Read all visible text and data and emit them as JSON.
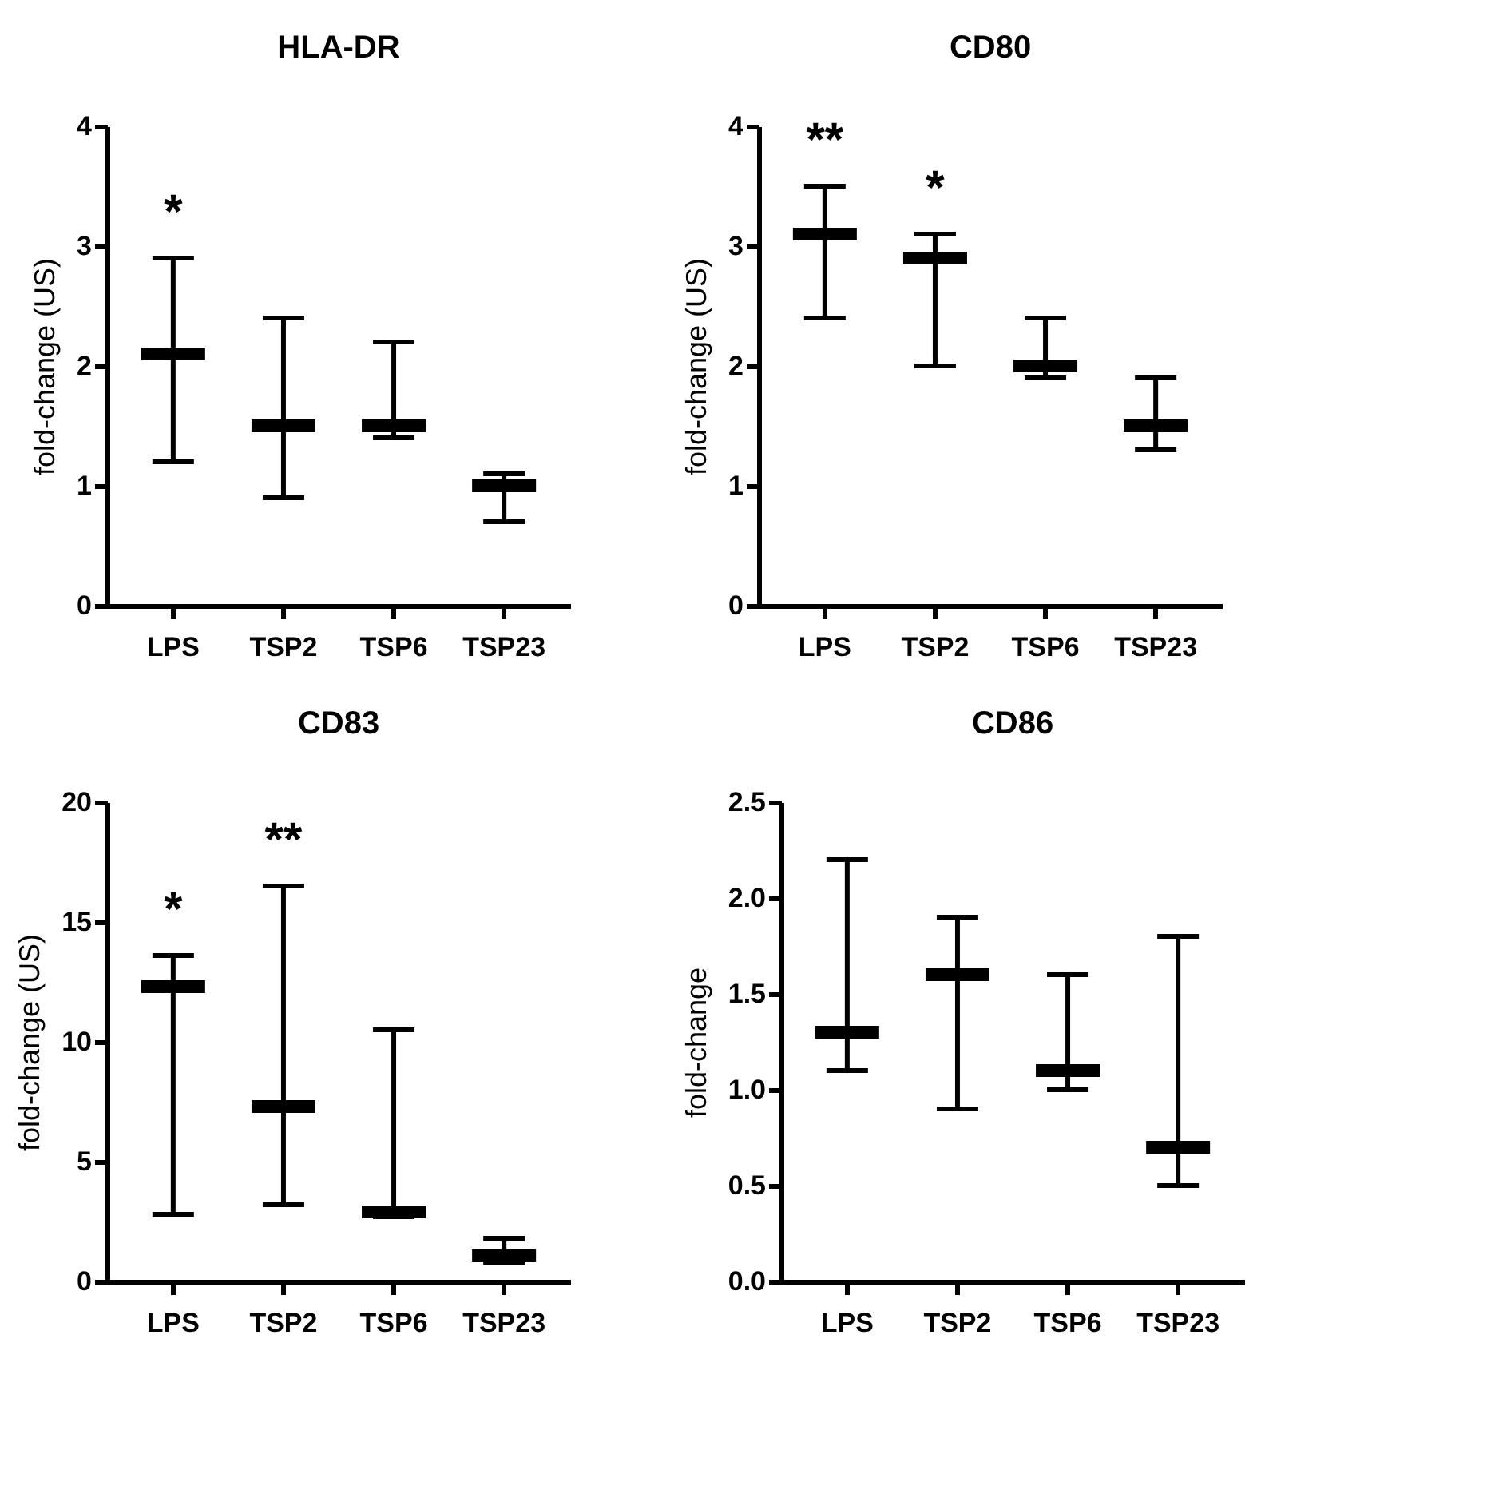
{
  "chart_data": [
    {
      "type": "box",
      "title": "HLA-DR",
      "ylabel": "fold-change (US)",
      "categories": [
        "LPS",
        "TSP2",
        "TSP6",
        "TSP23"
      ],
      "color": "#000000",
      "ylim": [
        0,
        4
      ],
      "yticks": [
        0,
        1,
        2,
        3,
        4
      ],
      "grid": false,
      "boxes": [
        {
          "low": 1.2,
          "q1": 2.1,
          "median": 2.1,
          "q3": 2.1,
          "high": 2.9
        },
        {
          "low": 0.9,
          "q1": 1.5,
          "median": 1.5,
          "q3": 1.5,
          "high": 2.4
        },
        {
          "low": 1.4,
          "q1": 1.5,
          "median": 1.5,
          "q3": 1.5,
          "high": 2.2
        },
        {
          "low": 0.7,
          "q1": 1.0,
          "median": 1.0,
          "q3": 1.0,
          "high": 1.1
        }
      ],
      "annotations": [
        "*"
      ]
    },
    {
      "type": "box",
      "title": "CD80",
      "ylabel": "fold-change (US)",
      "categories": [
        "LPS",
        "TSP2",
        "TSP6",
        "TSP23"
      ],
      "color": "#000000",
      "ylim": [
        0,
        4
      ],
      "yticks": [
        0,
        1,
        2,
        3,
        4
      ],
      "grid": false,
      "boxes": [
        {
          "low": 2.4,
          "q1": 3.1,
          "median": 3.1,
          "q3": 3.1,
          "high": 3.5
        },
        {
          "low": 2.0,
          "q1": 2.9,
          "median": 2.9,
          "q3": 2.9,
          "high": 3.1
        },
        {
          "low": 1.9,
          "q1": 2.0,
          "median": 2.0,
          "q3": 2.0,
          "high": 2.4
        },
        {
          "low": 1.3,
          "q1": 1.5,
          "median": 1.5,
          "q3": 1.5,
          "high": 1.9
        }
      ],
      "annotations": [
        "**",
        "*"
      ]
    },
    {
      "type": "box",
      "title": "CD83",
      "ylabel": "fold-change (US)",
      "categories": [
        "LPS",
        "TSP2",
        "TSP6",
        "TSP23"
      ],
      "color": "#000000",
      "ylim": [
        0,
        20
      ],
      "yticks": [
        0,
        5,
        10,
        15,
        20
      ],
      "grid": false,
      "boxes": [
        {
          "low": 2.8,
          "q1": 12.3,
          "median": 12.3,
          "q3": 12.3,
          "high": 13.6
        },
        {
          "low": 3.2,
          "q1": 7.3,
          "median": 7.3,
          "q3": 7.3,
          "high": 16.5
        },
        {
          "low": 2.7,
          "q1": 2.9,
          "median": 2.9,
          "q3": 2.9,
          "high": 10.5
        },
        {
          "low": 0.8,
          "q1": 1.1,
          "median": 1.1,
          "q3": 1.1,
          "high": 1.8
        }
      ],
      "annotations": [
        "*",
        "**"
      ]
    },
    {
      "type": "box",
      "title": "CD86",
      "ylabel": "fold-change",
      "categories": [
        "LPS",
        "TSP2",
        "TSP6",
        "TSP23"
      ],
      "color": "#000000",
      "ylim": [
        0,
        2.5
      ],
      "yticks": [
        {
          "value": 0,
          "label": "0.0"
        },
        0.5,
        {
          "value": 1,
          "label": "1.0"
        },
        1.5,
        {
          "value": 2,
          "label": "2.0"
        },
        2.5
      ],
      "grid": false,
      "boxes": [
        {
          "low": 1.1,
          "q1": 1.3,
          "median": 1.3,
          "q3": 1.3,
          "high": 2.2
        },
        {
          "low": 0.9,
          "q1": 1.6,
          "median": 1.6,
          "q3": 1.6,
          "high": 1.9
        },
        {
          "low": 1.0,
          "q1": 1.1,
          "median": 1.1,
          "q3": 1.1,
          "high": 1.6
        },
        {
          "low": 0.5,
          "q1": 0.7,
          "median": 0.7,
          "q3": 0.7,
          "high": 1.8
        }
      ]
    }
  ]
}
